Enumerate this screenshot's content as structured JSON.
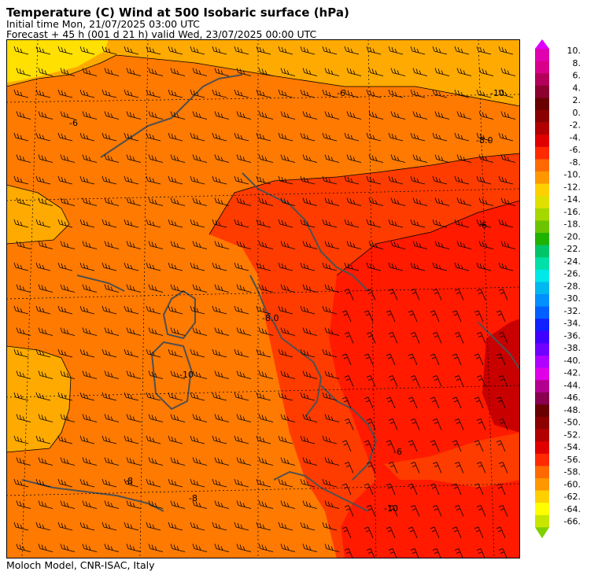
{
  "header": {
    "title": "Temperature (C) Wind  at 500 Isobaric surface (hPa)",
    "initial_time": "Initial time  Mon, 21/07/2025  03:00 UTC",
    "forecast": "Forecast  +  45 h  (001 d 21 h)  valid Wed, 23/07/2025 00:00 UTC"
  },
  "footer": {
    "credit": "Moloch Model, CNR-ISAC, Italy"
  },
  "colorbar": {
    "labels": [
      "10.",
      "8.",
      "6.",
      "4.",
      "2.",
      "0.",
      "-2.",
      "-4.",
      "-6.",
      "-8.",
      "-10.",
      "-12.",
      "-14.",
      "-16.",
      "-18.",
      "-20.",
      "-22.",
      "-24.",
      "-26.",
      "-28.",
      "-30.",
      "-32.",
      "-34.",
      "-36.",
      "-38.",
      "-40.",
      "-42.",
      "-44.",
      "-46.",
      "-48.",
      "-50.",
      "-52.",
      "-54.",
      "-56.",
      "-58.",
      "-60.",
      "-62.",
      "-64.",
      "-66."
    ],
    "colors": [
      "#dd00ff",
      "#e000b0",
      "#d8008a",
      "#b4005a",
      "#8c0030",
      "#6a0000",
      "#8a0000",
      "#b20000",
      "#e00000",
      "#ff2a00",
      "#ff6a00",
      "#ff9800",
      "#ffd000",
      "#e0e000",
      "#a6d800",
      "#6cc400",
      "#20b200",
      "#00c468",
      "#00e0a8",
      "#00e8e8",
      "#00b8f0",
      "#0090ff",
      "#0060ff",
      "#1020ff",
      "#4000ff",
      "#7000ff",
      "#b000ff",
      "#e000e8",
      "#b40090",
      "#8a0050",
      "#6a0000",
      "#8c0000",
      "#b20000",
      "#e00000",
      "#ff2a00",
      "#ff6a00",
      "#ff9800",
      "#ffd000",
      "#ffff00",
      "#c8e600",
      "#80d000"
    ]
  },
  "map": {
    "colors": {
      "orange_light": "#ffaa00",
      "yellow": "#ffe000",
      "orange": "#ff7a00",
      "orange_red": "#ff3c00",
      "red": "#ff1a00",
      "dark_red": "#c80000",
      "coast": "#505050"
    },
    "contour_labels": [
      "-10",
      "-8.0",
      "-6",
      "-8.0",
      "-10",
      "-8",
      "-8",
      "-6",
      "-10",
      "-6",
      "-6"
    ]
  }
}
